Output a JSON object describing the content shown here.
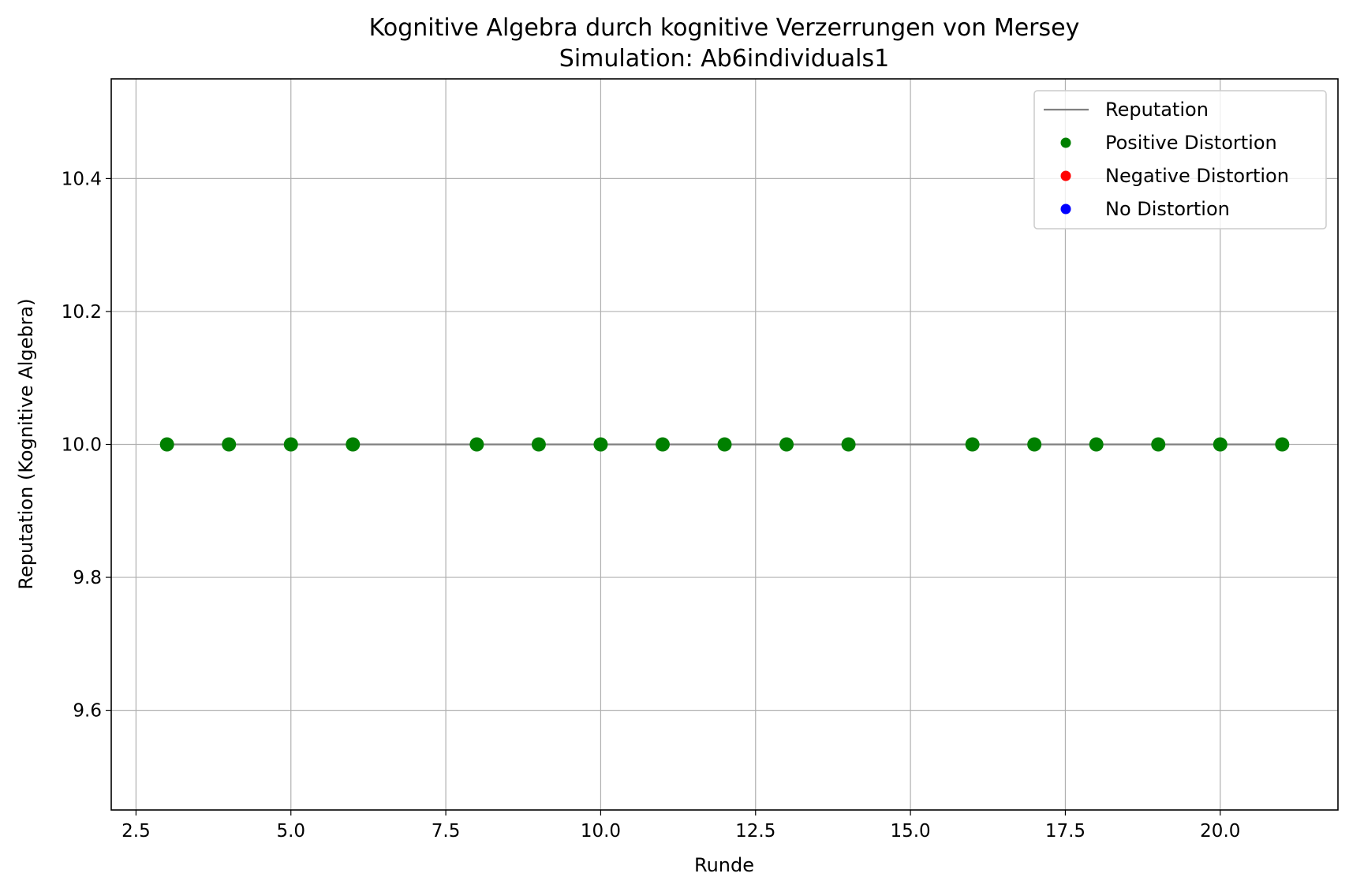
{
  "chart_data": {
    "type": "scatter",
    "title": "Kognitive Algebra durch kognitive Verzerrungen von Mersey",
    "subtitle": "Simulation: Ab6individuals1",
    "xlabel": "Runde",
    "ylabel": "Reputation (Kognitive Algebra)",
    "xlim": [
      2.1,
      21.9
    ],
    "ylim": [
      9.45,
      10.55
    ],
    "xticks": [
      "2.5",
      "5.0",
      "7.5",
      "10.0",
      "12.5",
      "15.0",
      "17.5",
      "20.0"
    ],
    "yticks": [
      "9.6",
      "9.8",
      "10.0",
      "10.2",
      "10.4"
    ],
    "grid": true,
    "legend_position": "top-right",
    "series": [
      {
        "name": "Reputation",
        "kind": "line",
        "color": "#808080",
        "x": [
          3,
          4,
          5,
          6,
          8,
          9,
          10,
          11,
          12,
          13,
          14,
          16,
          17,
          18,
          19,
          20,
          21
        ],
        "y": [
          10.0,
          10.0,
          10.0,
          10.0,
          10.0,
          10.0,
          10.0,
          10.0,
          10.0,
          10.0,
          10.0,
          10.0,
          10.0,
          10.0,
          10.0,
          10.0,
          10.0
        ]
      },
      {
        "name": "Positive Distortion",
        "kind": "scatter",
        "color": "#008000",
        "x": [
          3,
          4,
          5,
          6,
          8,
          9,
          10,
          11,
          12,
          13,
          14,
          16,
          17,
          18,
          19,
          20,
          21
        ],
        "y": [
          10.0,
          10.0,
          10.0,
          10.0,
          10.0,
          10.0,
          10.0,
          10.0,
          10.0,
          10.0,
          10.0,
          10.0,
          10.0,
          10.0,
          10.0,
          10.0,
          10.0
        ]
      },
      {
        "name": "Negative Distortion",
        "kind": "scatter",
        "color": "#ff0000",
        "x": [],
        "y": []
      },
      {
        "name": "No Distortion",
        "kind": "scatter",
        "color": "#0000ff",
        "x": [],
        "y": []
      }
    ]
  }
}
